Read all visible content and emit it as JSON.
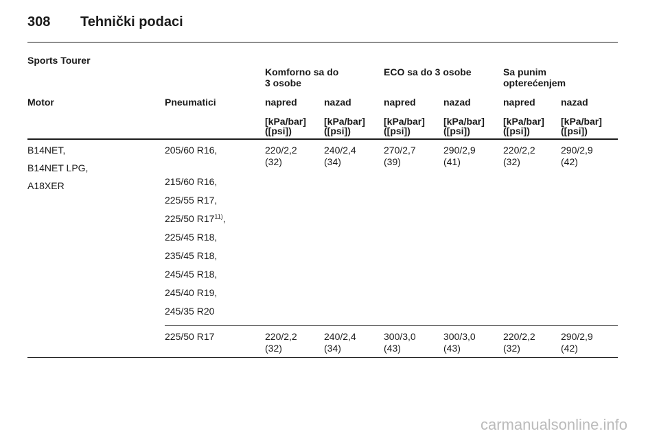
{
  "header": {
    "page_number": "308",
    "title": "Tehnički podaci"
  },
  "section": "Sports Tourer",
  "groups": [
    [
      "Komforno sa do",
      "3 osobe"
    ],
    [
      "ECO sa do 3 osobe"
    ],
    [
      "Sa punim",
      "opterećenjem"
    ]
  ],
  "columns": [
    "Motor",
    "Pneumatici",
    "napred",
    "nazad",
    "napred",
    "nazad",
    "napred",
    "nazad"
  ],
  "units": [
    [
      "[kPa/bar]",
      "([psi])"
    ],
    [
      "[kPa/bar]",
      "([psi])"
    ],
    [
      "[kPa/bar]",
      "([psi])"
    ],
    [
      "[kPa/bar]",
      "([psi])"
    ],
    [
      "[kPa/bar]",
      "([psi])"
    ],
    [
      "[kPa/bar]",
      "([psi])"
    ]
  ],
  "rows": [
    {
      "motor": [
        "B14NET,",
        "B14NET LPG,",
        "A18XER"
      ],
      "tires": [
        {
          "text": "205/60 R16,"
        },
        {
          "text": "215/60 R16,"
        },
        {
          "text": "225/55 R17,"
        },
        {
          "text": "225/50 R17",
          "footnote": "11)",
          "suffix": ","
        },
        {
          "text": "225/45 R18,"
        },
        {
          "text": "235/45 R18,"
        },
        {
          "text": "245/45 R18,"
        },
        {
          "text": "245/40 R19,"
        },
        {
          "text": "245/35 R20"
        }
      ],
      "values": [
        [
          "220/2,2",
          "(32)"
        ],
        [
          "240/2,4",
          "(34)"
        ],
        [
          "270/2,7",
          "(39)"
        ],
        [
          "290/2,9",
          "(41)"
        ],
        [
          "220/2,2",
          "(32)"
        ],
        [
          "290/2,9",
          "(42)"
        ]
      ]
    },
    {
      "motor": [],
      "tires": [
        {
          "text": "225/50 R17"
        }
      ],
      "values": [
        [
          "220/2,2",
          "(32)"
        ],
        [
          "240/2,4",
          "(34)"
        ],
        [
          "300/3,0",
          "(43)"
        ],
        [
          "300/3,0",
          "(43)"
        ],
        [
          "220/2,2",
          "(32)"
        ],
        [
          "290/2,9",
          "(42)"
        ]
      ]
    }
  ],
  "watermark": "carmanualsonline.info"
}
